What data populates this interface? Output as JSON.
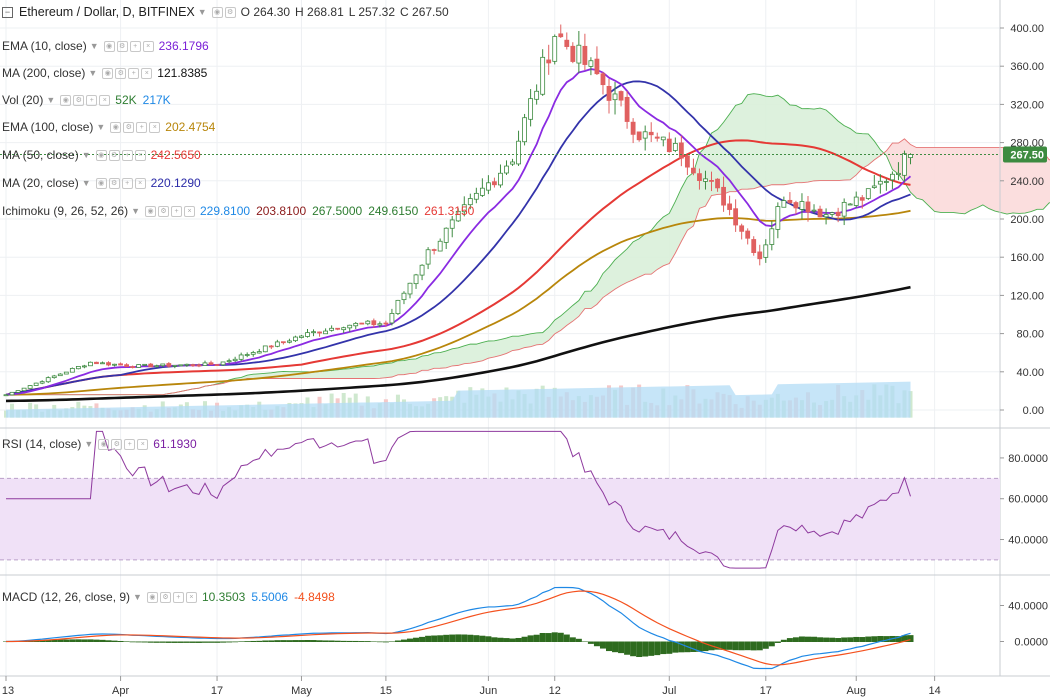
{
  "header": {
    "title": "Ethereum / Dollar, D, BITFINEX",
    "open": "O 264.30",
    "high": "H 268.81",
    "low": "L 257.32",
    "close": "C 267.50"
  },
  "indicators": [
    {
      "name": "EMA (10, close)",
      "values": [
        {
          "v": "236.1796",
          "color": "#7b1fd6"
        }
      ]
    },
    {
      "name": "MA (200, close)",
      "values": [
        {
          "v": "121.8385",
          "color": "#111111"
        }
      ]
    },
    {
      "name": "Vol (20)",
      "values": [
        {
          "v": "52K",
          "color": "#2e7d32"
        },
        {
          "v": "217K",
          "color": "#1e88e5"
        }
      ]
    },
    {
      "name": "EMA (100, close)",
      "values": [
        {
          "v": "202.4754",
          "color": "#b8860b"
        }
      ]
    },
    {
      "name": "MA (50, close)",
      "values": [
        {
          "v": "242.5650",
          "color": "#e53935"
        }
      ]
    },
    {
      "name": "MA (20, close)",
      "values": [
        {
          "v": "220.1290",
          "color": "#2c2ca8"
        }
      ]
    },
    {
      "name": "Ichimoku (9, 26, 52, 26)",
      "values": [
        {
          "v": "229.8100",
          "color": "#1e88e5"
        },
        {
          "v": "203.8100",
          "color": "#8b1a1a"
        },
        {
          "v": "267.5000",
          "color": "#2e7d32"
        },
        {
          "v": "249.6150",
          "color": "#2e7d32"
        },
        {
          "v": "261.3150",
          "color": "#e53935"
        }
      ]
    }
  ],
  "rsi_legend": {
    "name": "RSI (14, close)",
    "value": "61.1930",
    "color": "#7b1fa2"
  },
  "macd_legend": {
    "name": "MACD (12, 26, close, 9)",
    "values": [
      {
        "v": "10.3503",
        "color": "#2e7d32"
      },
      {
        "v": "5.5006",
        "color": "#1e88e5"
      },
      {
        "v": "-4.8498",
        "color": "#f4511e"
      }
    ]
  },
  "price_axis_ticks": [
    "400.00",
    "360.00",
    "320.00",
    "280.00",
    "240.00",
    "200.00",
    "160.00",
    "120.00",
    "80.00",
    "40.00",
    "0.00"
  ],
  "rsi_axis_ticks": [
    "80.0000",
    "60.0000",
    "40.0000"
  ],
  "macd_axis_ticks": [
    "40.0000",
    "0.0000"
  ],
  "last_price_label": "267.50",
  "time_axis_labels": [
    "13",
    "Apr",
    "17",
    "May",
    "15",
    "Jun",
    "12",
    "Jul",
    "17",
    "Aug",
    "14"
  ],
  "colors": {
    "up": "#3d8b40",
    "down": "#e06060",
    "ema10": "#8a2be2",
    "ma20": "#3333aa",
    "ma50": "#e53935",
    "ema100": "#b8860b",
    "ma200": "#111111",
    "cloud_green": "#d9efd9",
    "cloud_red": "#fbdada",
    "rsi": "#8e3a9e",
    "rsi_band": "#f0e1f7",
    "macd": "#1e88e5",
    "signal": "#f4511e",
    "hist": "#2e6b1f"
  },
  "chart_data": {
    "type": "candlestick",
    "title": "Ethereum / Dollar, D, BITFINEX",
    "date_range": [
      "2017-03-13",
      "2017-08-10"
    ],
    "ylim": [
      -10,
      420
    ],
    "anchors": [
      {
        "date": "2017-03-13",
        "close": 16
      },
      {
        "date": "2017-03-20",
        "close": 33
      },
      {
        "date": "2017-03-27",
        "close": 50
      },
      {
        "date": "2017-04-03",
        "close": 46
      },
      {
        "date": "2017-04-17",
        "close": 48
      },
      {
        "date": "2017-05-01",
        "close": 78
      },
      {
        "date": "2017-05-08",
        "close": 89
      },
      {
        "date": "2017-05-15",
        "close": 91
      },
      {
        "date": "2017-05-22",
        "close": 165
      },
      {
        "date": "2017-05-29",
        "close": 216
      },
      {
        "date": "2017-06-05",
        "close": 265
      },
      {
        "date": "2017-06-12",
        "close": 395
      },
      {
        "date": "2017-06-19",
        "close": 350
      },
      {
        "date": "2017-06-26",
        "close": 290
      },
      {
        "date": "2017-07-03",
        "close": 270
      },
      {
        "date": "2017-07-10",
        "close": 220
      },
      {
        "date": "2017-07-16",
        "close": 160
      },
      {
        "date": "2017-07-20",
        "close": 225
      },
      {
        "date": "2017-07-27",
        "close": 205
      },
      {
        "date": "2017-08-03",
        "close": 225
      },
      {
        "date": "2017-08-10",
        "close": 267.5
      }
    ],
    "last_values": {
      "ema10": 236.1796,
      "ma20": 220.129,
      "ma50": 242.565,
      "ema100": 202.4754,
      "ma200": 121.8385
    },
    "rsi": {
      "last": 61.193,
      "band": [
        30,
        70
      ],
      "ylim": [
        24,
        96
      ]
    },
    "macd": {
      "macd_last": 5.5006,
      "signal_last": 10.3503,
      "hist_last": -4.8498,
      "ylim": [
        -30,
        65
      ]
    }
  }
}
